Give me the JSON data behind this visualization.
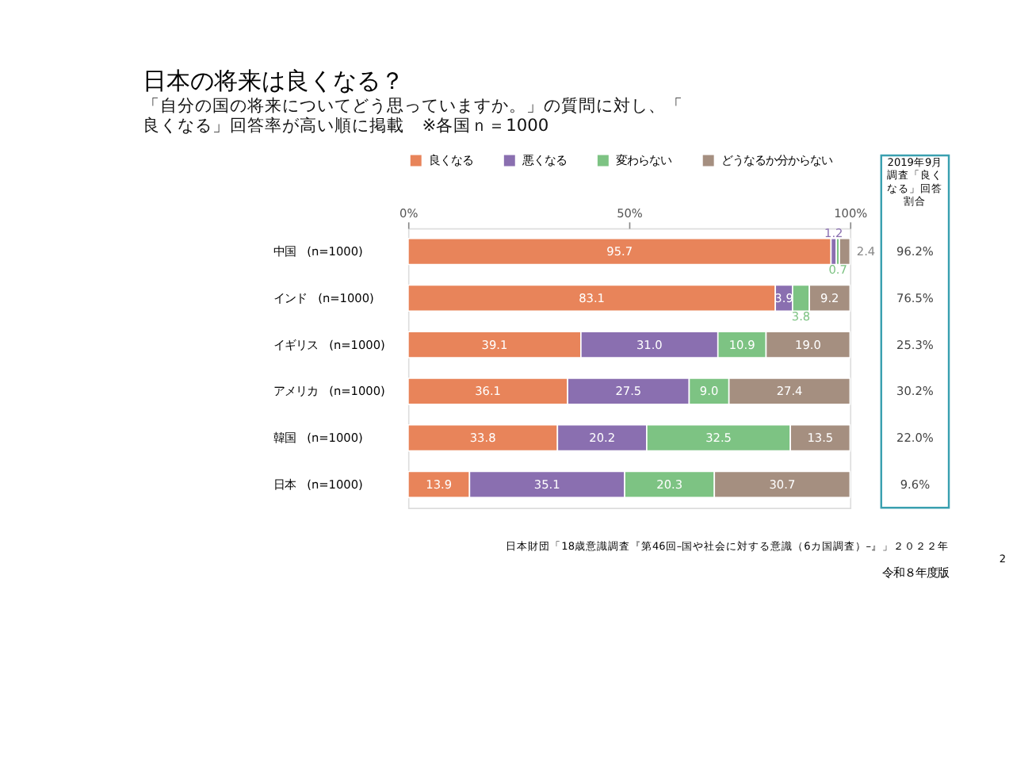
{
  "chart_data": {
    "type": "bar",
    "orientation": "horizontal",
    "stacked": true,
    "title": "日本の将来は良くなる？",
    "subtitle": "「自分の国の将来についてどう思っていますか。」の質問に対し、「良くなる」回答率が高い順に掲載　※各国ｎ＝1000",
    "categories": [
      "中国　(n=1000)",
      "インド　(n=1000)",
      "イギリス　(n=1000)",
      "アメリカ　(n=1000)",
      "韓国　(n=1000)",
      "日本　(n=1000)"
    ],
    "series": [
      {
        "name": "良くなる",
        "color": "#e8845a",
        "values": [
          95.7,
          83.1,
          39.1,
          36.1,
          33.8,
          13.9
        ],
        "value_labels": [
          "95.7",
          "83.1",
          "39.1",
          "36.1",
          "33.8",
          "13.9"
        ]
      },
      {
        "name": "悪くなる",
        "color": "#8a6fb0",
        "values": [
          1.2,
          3.9,
          31.0,
          27.5,
          20.2,
          35.1
        ],
        "value_labels": [
          "1.2",
          "3.9",
          "31.0",
          "27.5",
          "20.2",
          "35.1"
        ]
      },
      {
        "name": "変わらない",
        "color": "#7dc383",
        "values": [
          0.7,
          3.8,
          10.9,
          9.0,
          32.5,
          20.3
        ],
        "value_labels": [
          "0.7",
          "3.8",
          "10.9",
          "9.0",
          "32.5",
          "20.3"
        ]
      },
      {
        "name": "どうなるか分からない",
        "color": "#a58f80",
        "values": [
          2.4,
          9.2,
          19.0,
          27.4,
          13.5,
          30.7
        ],
        "value_labels": [
          "2.4",
          "9.2",
          "19.0",
          "27.4",
          "13.5",
          "30.7"
        ]
      }
    ],
    "xlim": [
      0,
      100
    ],
    "xticks": [
      {
        "value": 0,
        "label": "0%"
      },
      {
        "value": 50,
        "label": "50%"
      },
      {
        "value": 100,
        "label": "100%"
      }
    ],
    "legend": "top",
    "annotations": [
      "2019年9月調査「良くなる」回答割合",
      "96.2%",
      "76.5%",
      "25.3%",
      "30.2%",
      "22.0%",
      "9.6%",
      "日本財団「18歳意識調査『第46回–国や社会に対する意識（6カ国調査）–』」２０２２年",
      "令和８年度版",
      "2"
    ]
  }
}
